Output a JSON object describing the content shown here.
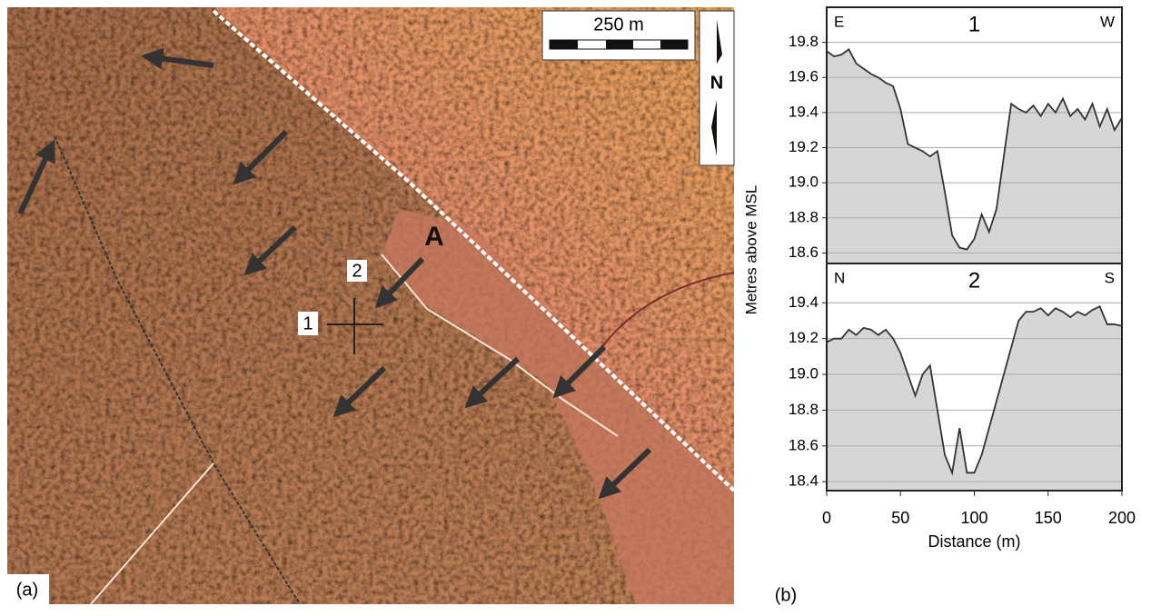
{
  "map": {
    "panel_label": "(a)",
    "scale_label": "250 m",
    "north_label": "N",
    "site_label": "A",
    "profile_1_label": "1",
    "profile_2_label": "2"
  },
  "panel_b_label": "(b)",
  "chart_data": [
    {
      "type": "area",
      "title": "1",
      "left_label": "E",
      "right_label": "W",
      "ylabel": "Metres above MSL",
      "x": [
        0,
        5,
        10,
        15,
        20,
        25,
        30,
        35,
        40,
        45,
        50,
        55,
        60,
        65,
        70,
        75,
        80,
        85,
        90,
        95,
        100,
        105,
        110,
        115,
        120,
        125,
        130,
        135,
        140,
        145,
        150,
        155,
        160,
        165,
        170,
        175,
        180,
        185,
        190,
        195,
        200
      ],
      "values": [
        19.75,
        19.72,
        19.73,
        19.76,
        19.68,
        19.65,
        19.62,
        19.6,
        19.57,
        19.55,
        19.42,
        19.22,
        19.2,
        19.18,
        19.15,
        19.18,
        18.95,
        18.7,
        18.63,
        18.62,
        18.68,
        18.82,
        18.72,
        18.85,
        19.15,
        19.45,
        19.42,
        19.4,
        19.44,
        19.38,
        19.45,
        19.4,
        19.48,
        19.38,
        19.42,
        19.36,
        19.45,
        19.32,
        19.42,
        19.3,
        19.37
      ],
      "color": "#333333",
      "fill": "#d6d6d6",
      "xlim": [
        0,
        200
      ],
      "ylim": [
        18.54,
        20.0
      ],
      "yticks": [
        18.6,
        18.8,
        {
          "value": 19,
          "label": "19.0"
        },
        19.2,
        19.4,
        19.6,
        19.8
      ],
      "grid": true
    },
    {
      "type": "area",
      "title": "2",
      "left_label": "N",
      "right_label": "S",
      "xlabel": "Distance (m)",
      "x": [
        0,
        5,
        10,
        15,
        20,
        25,
        30,
        35,
        40,
        45,
        50,
        55,
        60,
        65,
        70,
        75,
        80,
        85,
        90,
        95,
        100,
        105,
        110,
        115,
        120,
        125,
        130,
        135,
        140,
        145,
        150,
        155,
        160,
        165,
        170,
        175,
        180,
        185,
        190,
        195,
        200
      ],
      "values": [
        19.18,
        19.2,
        19.2,
        19.25,
        19.22,
        19.26,
        19.25,
        19.22,
        19.25,
        19.2,
        19.12,
        19.0,
        18.88,
        19.0,
        19.05,
        18.8,
        18.55,
        18.45,
        18.7,
        18.45,
        18.45,
        18.55,
        18.7,
        18.85,
        19.0,
        19.15,
        19.3,
        19.35,
        19.35,
        19.37,
        19.33,
        19.37,
        19.35,
        19.32,
        19.35,
        19.33,
        19.36,
        19.38,
        19.28,
        19.28,
        19.27
      ],
      "color": "#333333",
      "fill": "#d6d6d6",
      "xlim": [
        0,
        200
      ],
      "ylim": [
        18.35,
        19.62
      ],
      "xticks": [
        0,
        50,
        100,
        150,
        200
      ],
      "yticks": [
        18.4,
        18.6,
        18.8,
        {
          "value": 19,
          "label": "19.0"
        },
        19.2,
        19.4
      ],
      "grid": true
    }
  ]
}
